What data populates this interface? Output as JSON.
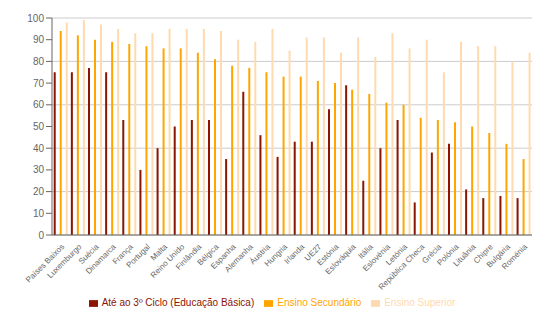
{
  "chart_data": {
    "type": "bar",
    "categories": [
      "Países Baixos",
      "Luxemburgo",
      "Suécia",
      "Dinamarca",
      "França",
      "Portugal",
      "Malta",
      "Reino Unido",
      "Finlândia",
      "Bélgica",
      "Espanha",
      "Alemanha",
      "Áustria",
      "Hungria",
      "Irlanda",
      "UE27",
      "Estónia",
      "Eslováquia",
      "Itália",
      "Eslovénia",
      "Letónia",
      "República Checa",
      "Grécia",
      "Polónia",
      "Lituânia",
      "Chipre",
      "Bulgária",
      "Roménia"
    ],
    "series": [
      {
        "name": "Até ao 3º Ciclo (Educação Básica)",
        "color": "#8B1500",
        "values": [
          75,
          75,
          77,
          75,
          53,
          30,
          40,
          50,
          53,
          53,
          35,
          66,
          46,
          36,
          43,
          43,
          58,
          69,
          25,
          40,
          53,
          15,
          38,
          42,
          21,
          17,
          18,
          17
        ]
      },
      {
        "name": "Ensino Secundário",
        "color": "#FFA500",
        "values": [
          94,
          92,
          90,
          89,
          88,
          87,
          86,
          86,
          84,
          81,
          78,
          77,
          75,
          73,
          73,
          71,
          70,
          67,
          65,
          61,
          60,
          54,
          53,
          52,
          50,
          47,
          42,
          35
        ]
      },
      {
        "name": "Ensino Superior",
        "color": "#FFDAB0",
        "values": [
          98,
          99,
          97,
          95,
          93,
          93,
          95,
          95,
          95,
          94,
          90,
          89,
          95,
          85,
          91,
          91,
          84,
          91,
          82,
          93,
          86,
          90,
          75,
          89,
          87,
          87,
          80,
          84
        ]
      }
    ],
    "ylim": [
      0,
      100
    ],
    "yticks": [
      0,
      10,
      20,
      30,
      40,
      50,
      60,
      70,
      80,
      90,
      100
    ],
    "grid": true,
    "legend": "bottom"
  }
}
